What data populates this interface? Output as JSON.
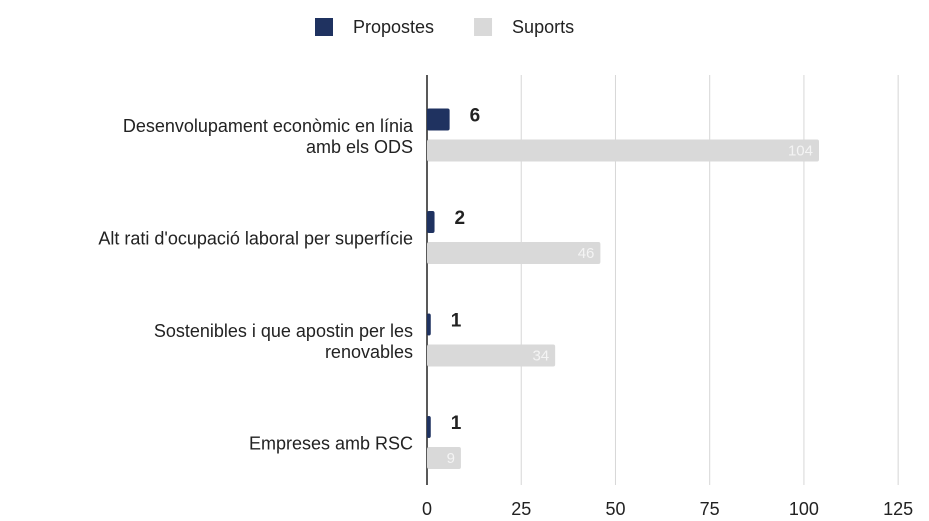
{
  "chart_data": {
    "type": "hbar",
    "categories": [
      "Desenvolupament econòmic en línia\namb els ODS",
      "Alt rati d'ocupació laboral per superfície",
      "Sostenibles i que apostin per les\nrenovables",
      "Empreses amb RSC"
    ],
    "series": [
      {
        "name": "Propostes",
        "color": "#1f3260",
        "values": [
          6,
          2,
          1,
          1
        ]
      },
      {
        "name": "Suports",
        "color": "#d9d9d9",
        "values": [
          104,
          46,
          34,
          9
        ]
      }
    ],
    "xlim": [
      0,
      130
    ],
    "xticks": [
      0,
      25,
      50,
      75,
      100,
      125
    ],
    "grid": true,
    "legend": "top"
  }
}
